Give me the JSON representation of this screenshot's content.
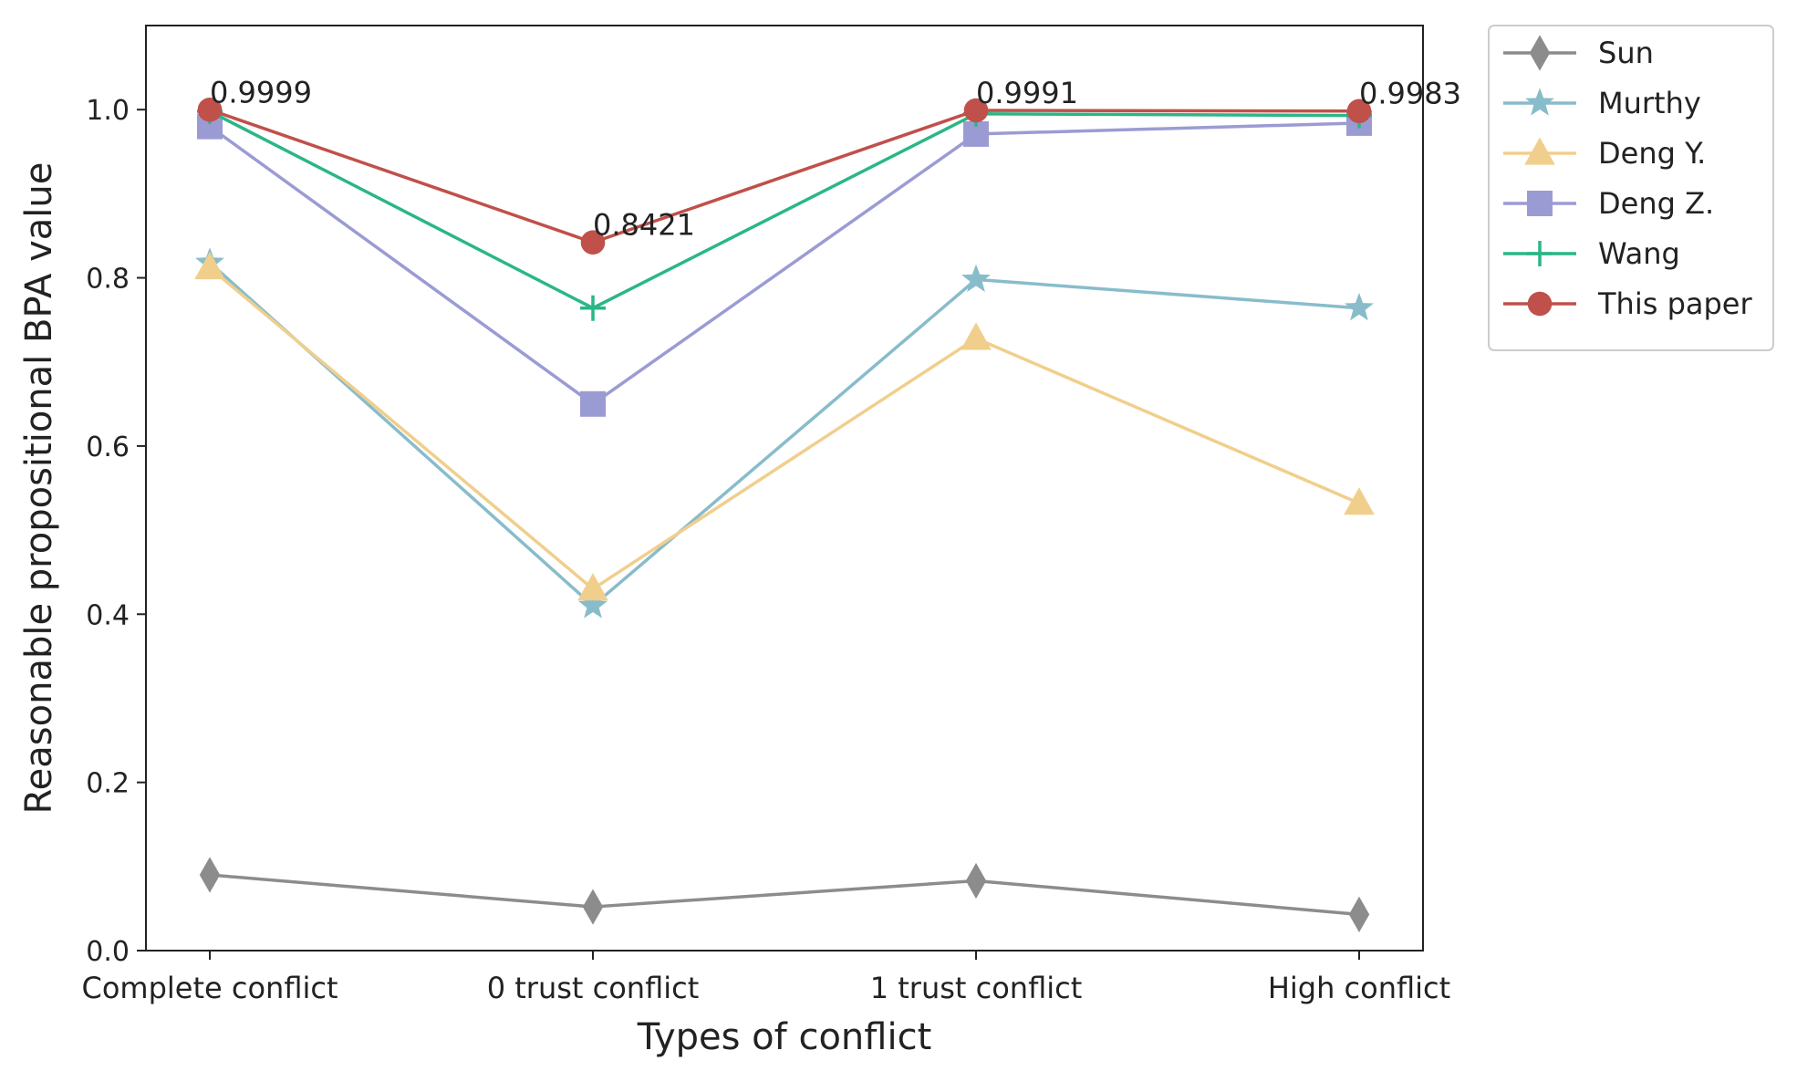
{
  "chart_data": {
    "type": "line",
    "xlabel": "Types of conflict",
    "ylabel": "Reasonable propositional BPA value",
    "categories": [
      "Complete conflict",
      "0 trust conflict",
      "1 trust conflict",
      "High conflict"
    ],
    "ylim": [
      0,
      1.1
    ],
    "yticks": [
      "0.0",
      "0.2",
      "0.4",
      "0.6",
      "0.8",
      "1.0"
    ],
    "grid": false,
    "legend_position": "outside right, top",
    "series": [
      {
        "name": "Sun",
        "values": [
          0.09,
          0.052,
          0.083,
          0.043
        ],
        "color": "#8c8c8c",
        "marker": "diamond"
      },
      {
        "name": "Murthy",
        "values": [
          0.818,
          0.41,
          0.798,
          0.764
        ],
        "color": "#88bccb",
        "marker": "star"
      },
      {
        "name": "Deng Y.",
        "values": [
          0.812,
          0.43,
          0.728,
          0.532
        ],
        "color": "#f0cf8c",
        "marker": "triangle"
      },
      {
        "name": "Deng Z.",
        "values": [
          0.98,
          0.65,
          0.971,
          0.984
        ],
        "color": "#9b9bd4",
        "marker": "square"
      },
      {
        "name": "Wang",
        "values": [
          0.998,
          0.764,
          0.995,
          0.993
        ],
        "color": "#2bb686",
        "marker": "plus"
      },
      {
        "name": "This paper",
        "values": [
          0.9999,
          0.8421,
          0.9991,
          0.9983
        ],
        "color": "#c0504a",
        "marker": "circle"
      }
    ],
    "annotations": [
      {
        "text": "0.9999",
        "category_index": 0,
        "value": 0.9999
      },
      {
        "text": "0.8421",
        "category_index": 1,
        "value": 0.8421
      },
      {
        "text": "0.9991",
        "category_index": 2,
        "value": 0.9991
      },
      {
        "text": "0.9983",
        "category_index": 3,
        "value": 0.9983
      }
    ]
  }
}
